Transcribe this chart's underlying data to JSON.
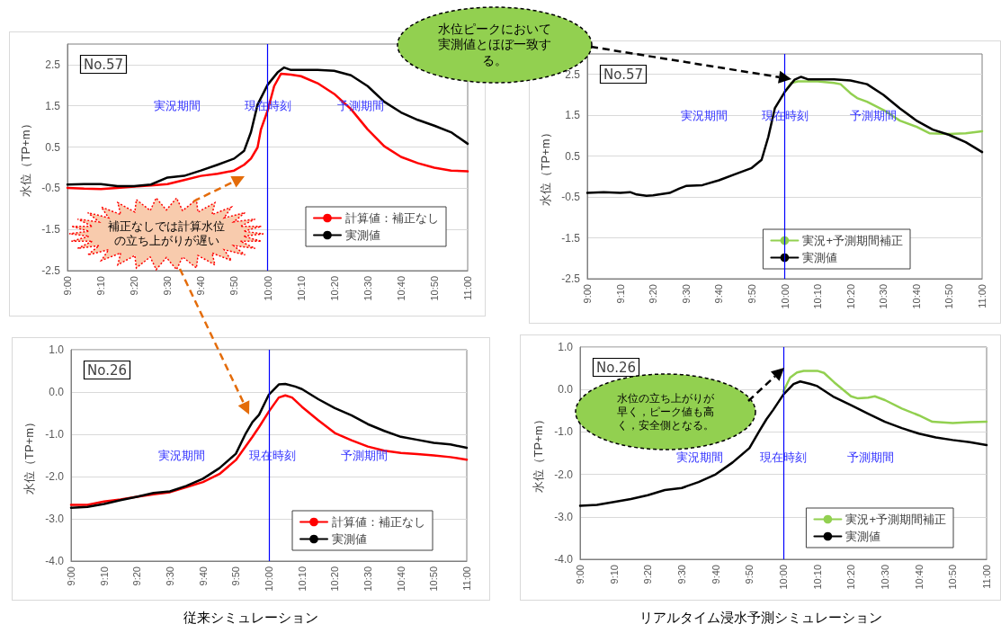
{
  "chart_data": [
    {
      "type": "line",
      "title": "No.57",
      "ylabel": "水位（TP+m）",
      "xlim": [
        9,
        11
      ],
      "xticks": [
        {
          "value": 9,
          "label": "9:00"
        },
        {
          "value": 9.167,
          "label": "9:10"
        },
        {
          "value": 9.333,
          "label": "9:20"
        },
        {
          "value": 9.5,
          "label": "9:30"
        },
        {
          "value": 9.667,
          "label": "9:40"
        },
        {
          "value": 9.833,
          "label": "9:50"
        },
        {
          "value": 10,
          "label": "10:00"
        },
        {
          "value": 10.167,
          "label": "10:10"
        },
        {
          "value": 10.333,
          "label": "10:20"
        },
        {
          "value": 10.5,
          "label": "10:30"
        },
        {
          "value": 10.667,
          "label": "10:40"
        },
        {
          "value": 10.833,
          "label": "10:50"
        },
        {
          "value": 11,
          "label": "11:00"
        }
      ],
      "ylim": [
        -2.5,
        3
      ],
      "yticks": [
        -2.5,
        -1.5,
        -0.5,
        0.5,
        1.5,
        2.5
      ],
      "grid": "y",
      "legend": "bottom right",
      "series": [
        {
          "name": "計算値：補正なし",
          "color": "#ff0000",
          "x": [
            9,
            9.083,
            9.167,
            9.25,
            9.333,
            9.417,
            9.5,
            9.583,
            9.667,
            9.75,
            9.833,
            9.883,
            9.917,
            9.95,
            9.967,
            10,
            10.033,
            10.067,
            10.117,
            10.167,
            10.25,
            10.333,
            10.417,
            10.5,
            10.583,
            10.667,
            10.75,
            10.833,
            10.917,
            11
          ],
          "values": [
            -0.49,
            -0.51,
            -0.52,
            -0.49,
            -0.46,
            -0.43,
            -0.4,
            -0.3,
            -0.2,
            -0.15,
            -0.07,
            0.07,
            0.22,
            0.49,
            0.93,
            1.38,
            1.98,
            2.28,
            2.26,
            2.22,
            2.05,
            1.79,
            1.42,
            0.93,
            0.52,
            0.26,
            0.11,
            0,
            -0.07,
            -0.09
          ]
        },
        {
          "name": "実測値",
          "color": "#000000",
          "x": [
            9,
            9.083,
            9.167,
            9.25,
            9.333,
            9.417,
            9.5,
            9.583,
            9.667,
            9.75,
            9.833,
            9.883,
            9.917,
            9.95,
            10,
            10.05,
            10.083,
            10.117,
            10.167,
            10.25,
            10.333,
            10.417,
            10.5,
            10.583,
            10.667,
            10.75,
            10.833,
            10.917,
            11
          ],
          "values": [
            -0.41,
            -0.4,
            -0.4,
            -0.45,
            -0.45,
            -0.41,
            -0.24,
            -0.2,
            -0.07,
            0.07,
            0.22,
            0.41,
            0.86,
            1.53,
            2.01,
            2.31,
            2.43,
            2.37,
            2.37,
            2.37,
            2.35,
            2.24,
            1.98,
            1.6,
            1.34,
            1.16,
            1.02,
            0.86,
            0.58
          ]
        }
      ],
      "ref_lines": [
        {
          "axis": "x",
          "value": 10,
          "color": "#0000ff"
        }
      ],
      "annotations": [
        "実況期間",
        "現在時刻",
        "予測期間",
        "補正なしでは計算水位の立ち上がりが遅い"
      ]
    },
    {
      "type": "line",
      "title": "No.57",
      "ylabel": "水位（TP+m）",
      "xlim": [
        9,
        11
      ],
      "xticks": [
        {
          "value": 9,
          "label": "9:00"
        },
        {
          "value": 9.167,
          "label": "9:10"
        },
        {
          "value": 9.333,
          "label": "9:20"
        },
        {
          "value": 9.5,
          "label": "9:30"
        },
        {
          "value": 9.667,
          "label": "9:40"
        },
        {
          "value": 9.833,
          "label": "9:50"
        },
        {
          "value": 10,
          "label": "10:00"
        },
        {
          "value": 10.167,
          "label": "10:10"
        },
        {
          "value": 10.333,
          "label": "10:20"
        },
        {
          "value": 10.5,
          "label": "10:30"
        },
        {
          "value": 10.667,
          "label": "10:40"
        },
        {
          "value": 10.833,
          "label": "10:50"
        },
        {
          "value": 11,
          "label": "11:00"
        }
      ],
      "ylim": [
        -2.5,
        3
      ],
      "yticks": [
        -2.5,
        -1.5,
        -0.5,
        0.5,
        1.5,
        2.5
      ],
      "grid": "y",
      "legend": "bottom right",
      "series": [
        {
          "name": "実況+予測期間補正",
          "color": "#92d050",
          "x": [
            10,
            10.033,
            10.067,
            10.167,
            10.25,
            10.283,
            10.333,
            10.367,
            10.417,
            10.5,
            10.583,
            10.667,
            10.733,
            10.833,
            10.917,
            11
          ],
          "values": [
            2.07,
            2.29,
            2.33,
            2.33,
            2.29,
            2.26,
            2.04,
            1.92,
            1.83,
            1.63,
            1.37,
            1.22,
            1.06,
            1.04,
            1.06,
            1.11
          ]
        },
        {
          "name": "実測値",
          "color": "#000000",
          "x": [
            9,
            9.083,
            9.167,
            9.217,
            9.25,
            9.3,
            9.333,
            9.417,
            9.467,
            9.5,
            9.583,
            9.667,
            9.75,
            9.833,
            9.883,
            9.917,
            9.95,
            10,
            10.05,
            10.083,
            10.117,
            10.167,
            10.25,
            10.333,
            10.417,
            10.5,
            10.583,
            10.667,
            10.75,
            10.833,
            10.917,
            11
          ],
          "values": [
            -0.4,
            -0.38,
            -0.4,
            -0.38,
            -0.44,
            -0.47,
            -0.46,
            -0.4,
            -0.29,
            -0.23,
            -0.21,
            -0.09,
            0.06,
            0.21,
            0.41,
            0.97,
            1.67,
            2.07,
            2.37,
            2.44,
            2.38,
            2.38,
            2.38,
            2.35,
            2.26,
            2,
            1.67,
            1.37,
            1.15,
            1.02,
            0.84,
            0.6
          ]
        }
      ],
      "ref_lines": [
        {
          "axis": "x",
          "value": 10,
          "color": "#0000ff"
        }
      ],
      "annotations": [
        "実況期間",
        "現在時刻",
        "予測期間",
        "水位ピークにおいて実測値とほぼ一致する。"
      ]
    },
    {
      "type": "line",
      "title": "No.26",
      "ylabel": "水位（TP+m）",
      "xlim": [
        9,
        11
      ],
      "xticks": [
        {
          "value": 9,
          "label": "9:00"
        },
        {
          "value": 9.167,
          "label": "9:10"
        },
        {
          "value": 9.333,
          "label": "9:20"
        },
        {
          "value": 9.5,
          "label": "9:30"
        },
        {
          "value": 9.667,
          "label": "9:40"
        },
        {
          "value": 9.833,
          "label": "9:50"
        },
        {
          "value": 10,
          "label": "10:00"
        },
        {
          "value": 10.167,
          "label": "10:10"
        },
        {
          "value": 10.333,
          "label": "10:20"
        },
        {
          "value": 10.5,
          "label": "10:30"
        },
        {
          "value": 10.667,
          "label": "10:40"
        },
        {
          "value": 10.833,
          "label": "10:50"
        },
        {
          "value": 11,
          "label": "11:00"
        }
      ],
      "ylim": [
        -4,
        1
      ],
      "yticks": [
        {
          "value": -4,
          "label": "-4.0"
        },
        {
          "value": -3,
          "label": "-3.0"
        },
        {
          "value": -2,
          "label": "-2.0"
        },
        {
          "value": -1,
          "label": "-1.0"
        },
        {
          "value": 0,
          "label": "0.0"
        },
        {
          "value": 1,
          "label": "1.0"
        }
      ],
      "grid": "y",
      "legend": "bottom right",
      "series": [
        {
          "name": "計算値：補正なし",
          "color": "#ff0000",
          "x": [
            9,
            9.083,
            9.167,
            9.25,
            9.333,
            9.417,
            9.5,
            9.583,
            9.667,
            9.75,
            9.833,
            9.883,
            9.917,
            9.95,
            10,
            10.05,
            10.083,
            10.117,
            10.167,
            10.25,
            10.333,
            10.417,
            10.5,
            10.583,
            10.667,
            10.75,
            10.833,
            10.917,
            11
          ],
          "values": [
            -2.67,
            -2.67,
            -2.59,
            -2.54,
            -2.48,
            -2.42,
            -2.37,
            -2.25,
            -2.13,
            -1.94,
            -1.61,
            -1.28,
            -1.06,
            -0.83,
            -0.46,
            -0.13,
            -0.08,
            -0.13,
            -0.35,
            -0.67,
            -0.97,
            -1.14,
            -1.29,
            -1.39,
            -1.44,
            -1.47,
            -1.5,
            -1.54,
            -1.6
          ]
        },
        {
          "name": "実測値",
          "color": "#000000",
          "x": [
            9,
            9.083,
            9.167,
            9.25,
            9.333,
            9.417,
            9.5,
            9.583,
            9.667,
            9.75,
            9.833,
            9.883,
            9.917,
            9.95,
            10,
            10.05,
            10.083,
            10.133,
            10.167,
            10.25,
            10.333,
            10.417,
            10.5,
            10.583,
            10.667,
            10.75,
            10.833,
            10.917,
            11
          ],
          "values": [
            -2.74,
            -2.72,
            -2.65,
            -2.56,
            -2.48,
            -2.39,
            -2.35,
            -2.22,
            -2.05,
            -1.8,
            -1.46,
            -0.98,
            -0.71,
            -0.54,
            -0.06,
            0.18,
            0.19,
            0.13,
            0.07,
            -0.17,
            -0.38,
            -0.55,
            -0.76,
            -0.92,
            -1.06,
            -1.13,
            -1.2,
            -1.24,
            -1.32
          ]
        }
      ],
      "ref_lines": [
        {
          "axis": "x",
          "value": 10,
          "color": "#0000ff"
        }
      ],
      "annotations": [
        "実況期間",
        "現在時刻",
        "予測期間",
        "従来シミュレーション"
      ]
    },
    {
      "type": "line",
      "title": "No.26",
      "ylabel": "水位（TP+m）",
      "xlim": [
        9,
        11
      ],
      "xticks": [
        {
          "value": 9,
          "label": "9:00"
        },
        {
          "value": 9.167,
          "label": "9:10"
        },
        {
          "value": 9.333,
          "label": "9:20"
        },
        {
          "value": 9.5,
          "label": "9:30"
        },
        {
          "value": 9.667,
          "label": "9:40"
        },
        {
          "value": 9.833,
          "label": "9:50"
        },
        {
          "value": 10,
          "label": "10:00"
        },
        {
          "value": 10.167,
          "label": "10:10"
        },
        {
          "value": 10.333,
          "label": "10:20"
        },
        {
          "value": 10.5,
          "label": "10:30"
        },
        {
          "value": 10.667,
          "label": "10:40"
        },
        {
          "value": 10.833,
          "label": "10:50"
        },
        {
          "value": 11,
          "label": "11:00"
        }
      ],
      "ylim": [
        -4,
        1
      ],
      "yticks": [
        {
          "value": -4,
          "label": "-4.0"
        },
        {
          "value": -3,
          "label": "-3.0"
        },
        {
          "value": -2,
          "label": "-2.0"
        },
        {
          "value": -1,
          "label": "-1.0"
        },
        {
          "value": 0,
          "label": "0.0"
        },
        {
          "value": 1,
          "label": "1.0"
        }
      ],
      "grid": "y",
      "legend": "bottom right",
      "series": [
        {
          "name": "実況+予測期間補正",
          "color": "#92d050",
          "x": [
            10,
            10.033,
            10.067,
            10.1,
            10.167,
            10.2,
            10.25,
            10.333,
            10.367,
            10.417,
            10.45,
            10.5,
            10.583,
            10.667,
            10.733,
            10.833,
            10.917,
            11
          ],
          "values": [
            -0.05,
            0.28,
            0.4,
            0.44,
            0.44,
            0.39,
            0.17,
            -0.16,
            -0.21,
            -0.19,
            -0.16,
            -0.25,
            -0.45,
            -0.61,
            -0.76,
            -0.79,
            -0.77,
            -0.76
          ]
        },
        {
          "name": "実測値",
          "color": "#000000",
          "x": [
            9,
            9.083,
            9.167,
            9.25,
            9.333,
            9.417,
            9.5,
            9.583,
            9.667,
            9.75,
            9.833,
            9.883,
            9.917,
            9.95,
            10,
            10.05,
            10.083,
            10.133,
            10.167,
            10.25,
            10.333,
            10.417,
            10.5,
            10.583,
            10.667,
            10.75,
            10.833,
            10.917,
            11
          ],
          "values": [
            -2.74,
            -2.72,
            -2.65,
            -2.58,
            -2.49,
            -2.37,
            -2.32,
            -2.18,
            -2,
            -1.72,
            -1.38,
            -0.97,
            -0.7,
            -0.48,
            -0.12,
            0.13,
            0.19,
            0.13,
            0.08,
            -0.18,
            -0.37,
            -0.57,
            -0.76,
            -0.91,
            -1.04,
            -1.13,
            -1.19,
            -1.24,
            -1.31
          ]
        }
      ],
      "ref_lines": [
        {
          "axis": "x",
          "value": 10,
          "color": "#0000ff"
        }
      ],
      "annotations": [
        "実況期間",
        "現在時刻",
        "予測期間",
        "水位の立ち上がりが早く，ピーク値も高く，安全側となる。",
        "リアルタイム浸水予測シミュレーション"
      ]
    }
  ]
}
